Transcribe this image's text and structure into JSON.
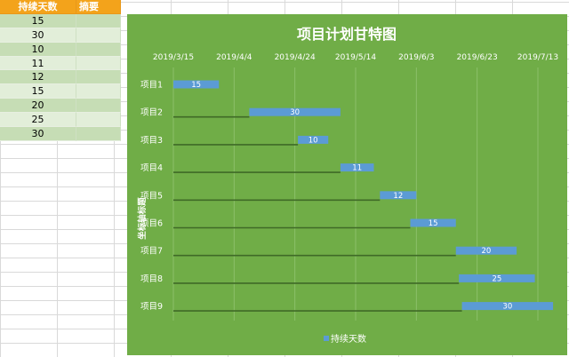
{
  "sheet": {
    "headers": [
      "持续天数",
      "摘要"
    ],
    "durations": [
      "15",
      "30",
      "10",
      "11",
      "12",
      "15",
      "20",
      "25",
      "30"
    ]
  },
  "chart_data": {
    "type": "bar",
    "orientation": "horizontal",
    "stacked": true,
    "title": "项目计划甘特图",
    "ylabel": "坐标轴标题",
    "categories": [
      "项目1",
      "项目2",
      "项目3",
      "项目4",
      "项目5",
      "项目6",
      "项目7",
      "项目8",
      "项目9"
    ],
    "start_dates": [
      "2019-03-15",
      "2019-04-09",
      "2019-04-25",
      "2019-05-09",
      "2019-05-22",
      "2019-06-01",
      "2019-06-16",
      "2019-06-17",
      "2019-06-18"
    ],
    "series": [
      {
        "name": "持续天数",
        "values": [
          15,
          30,
          10,
          11,
          12,
          15,
          20,
          25,
          30
        ],
        "color": "#5b9bd5"
      }
    ],
    "x_ticks": [
      "2019/3/15",
      "2019/4/4",
      "2019/4/24",
      "2019/5/14",
      "2019/6/3",
      "2019/6/23",
      "2019/7/13"
    ],
    "xlim": [
      "2019-03-15",
      "2019-07-13"
    ],
    "grid": true,
    "legend_position": "bottom",
    "background": "#70ad47"
  }
}
